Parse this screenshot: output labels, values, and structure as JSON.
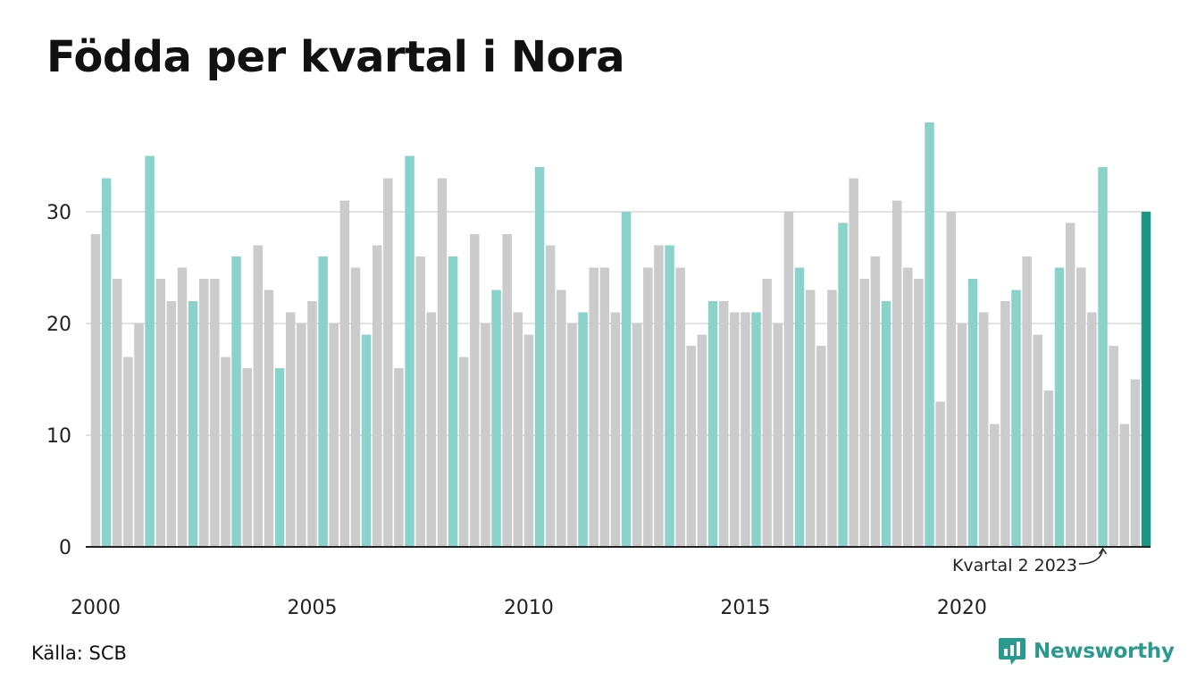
{
  "title": "Födda per kvartal i Nora",
  "source": "Källa: SCB",
  "brand": "Newsworthy",
  "colors": {
    "q2": "#8ad3cb",
    "other": "#cbcbcb",
    "highlight": "#1c9687",
    "grid": "#e2e2e2",
    "axis": "#222222",
    "brand": "#2b9a8e"
  },
  "chart_data": {
    "type": "bar",
    "title": "Födda per kvartal i Nora",
    "ylim": [
      0,
      38
    ],
    "yticks": [
      0,
      10,
      20,
      30
    ],
    "xtick_labels": [
      "2000",
      "2005",
      "2010",
      "2015",
      "2020"
    ],
    "grid": true,
    "series": [
      {
        "values": [
          28,
          33,
          24,
          17,
          20,
          35,
          24,
          22,
          25,
          22,
          24,
          24,
          17,
          26,
          16,
          27,
          23,
          16,
          21,
          20,
          22,
          26,
          20,
          31,
          25,
          19,
          27,
          33,
          16,
          35,
          26,
          21,
          33,
          26,
          17,
          28,
          20,
          23,
          28,
          21,
          19,
          34,
          27,
          23,
          20,
          21,
          25,
          25,
          21,
          30,
          20,
          25,
          27,
          27,
          25,
          18,
          19,
          22,
          22,
          21,
          21,
          21,
          24,
          20,
          30,
          25,
          23,
          18,
          23,
          29,
          33,
          24,
          26,
          22,
          31,
          25,
          24,
          38,
          13,
          30,
          20,
          24,
          21,
          11,
          22,
          23,
          26,
          19,
          14,
          25,
          29,
          25,
          21,
          34,
          18,
          11,
          15,
          30
        ]
      }
    ],
    "highlight_note": "Kvartal 2 2023"
  }
}
